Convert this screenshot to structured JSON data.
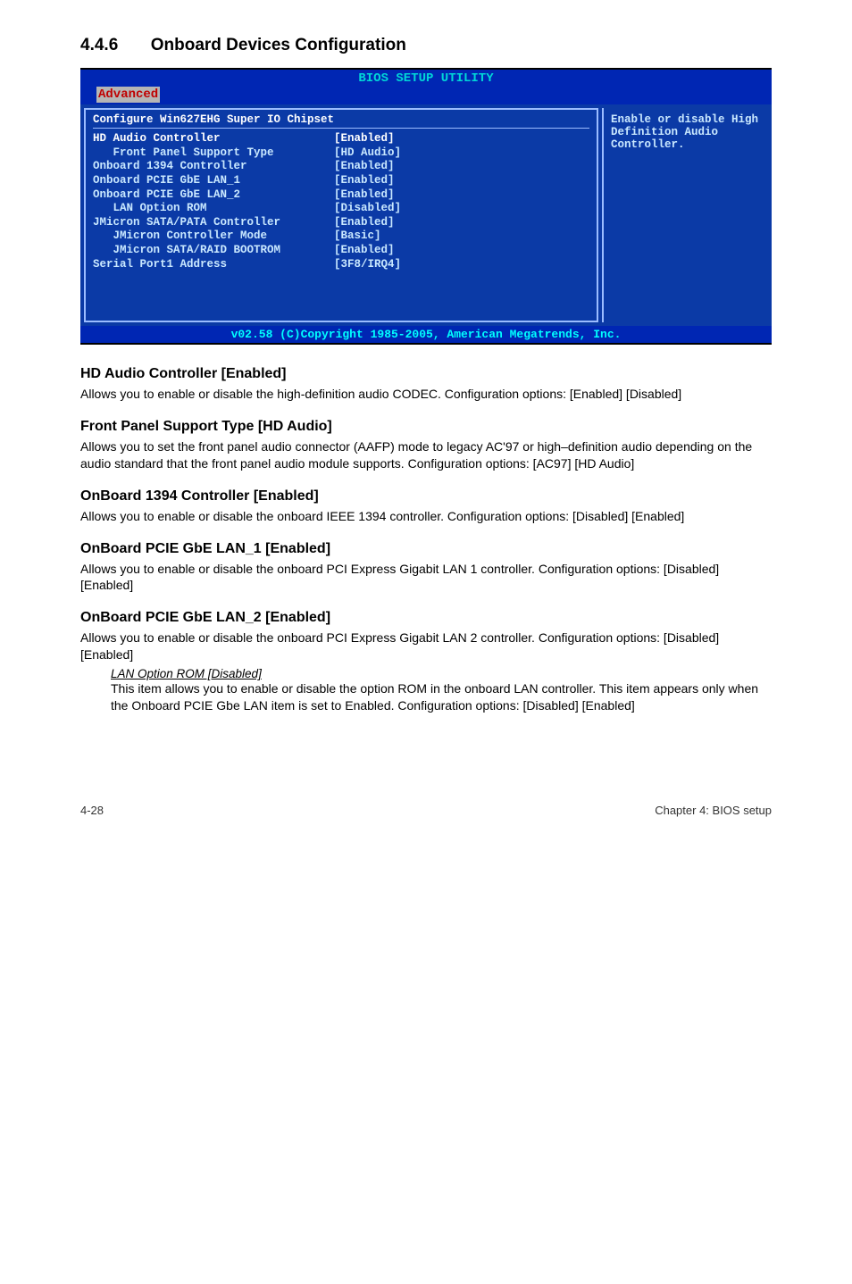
{
  "colors": {
    "bios_blue": "#0026b3",
    "bios_cyan": "#00d7d7",
    "bios_tab_bg": "#b5b5b5",
    "bios_tab_text": "#c00000",
    "bios_body_bg": "#0b3aa6",
    "bios_body_text": "#ffffff",
    "bios_right_text": "#c9e8ff",
    "bios_border": "#9bbcff",
    "bios_footer_text": "#00ffff",
    "bios_highlight": "#ffffff"
  },
  "section": {
    "number": "4.4.6",
    "title": "Onboard Devices Configuration"
  },
  "bios": {
    "title": "BIOS SETUP UTILITY",
    "tab": "Advanced",
    "panel_heading": "Configure Win627EHG Super IO Chipset",
    "rows": [
      {
        "k": "HD Audio Controller",
        "v": "[Enabled]",
        "indent": 0,
        "sel": true
      },
      {
        "k": "Front Panel Support Type",
        "v": "[HD Audio]",
        "indent": 1
      },
      {
        "k": "Onboard 1394 Controller",
        "v": "[Enabled]",
        "indent": 0
      },
      {
        "k": "Onboard PCIE GbE LAN_1",
        "v": "[Enabled]",
        "indent": 0
      },
      {
        "k": "Onboard PCIE GbE LAN_2",
        "v": "[Enabled]",
        "indent": 0
      },
      {
        "k": "LAN Option ROM",
        "v": "[Disabled]",
        "indent": 1
      },
      {
        "k": "JMicron SATA/PATA Controller",
        "v": "[Enabled]",
        "indent": 0
      },
      {
        "k": "JMicron Controller Mode",
        "v": "[Basic]",
        "indent": 1
      },
      {
        "k": "JMicron SATA/RAID BOOTROM",
        "v": "[Enabled]",
        "indent": 1
      },
      {
        "k": "",
        "v": "",
        "indent": 0
      },
      {
        "k": "Serial Port1 Address",
        "v": "[3F8/IRQ4]",
        "indent": 0
      }
    ],
    "help": "Enable or disable High Definition Audio Controller.",
    "footer": "v02.58 (C)Copyright 1985-2005, American Megatrends, Inc."
  },
  "subs": [
    {
      "h": "HD Audio Controller [Enabled]",
      "p": "Allows you to enable or disable the high-definition audio CODEC. Configuration options: [Enabled] [Disabled]"
    },
    {
      "h": "Front Panel Support Type [HD Audio]",
      "p": "Allows you to set the front panel audio connector (AAFP) mode to legacy AC'97 or high–definition audio depending on the audio standard that the front panel audio module supports. Configuration options: [AC97] [HD Audio]"
    },
    {
      "h": "OnBoard 1394 Controller [Enabled]",
      "p": "Allows you to enable or disable the onboard IEEE 1394 controller.  Configuration options: [Disabled] [Enabled]"
    },
    {
      "h": "OnBoard PCIE GbE LAN_1 [Enabled]",
      "p": "Allows you to enable or disable the onboard PCI Express Gigabit LAN 1 controller. Configuration options: [Disabled] [Enabled]"
    },
    {
      "h": "OnBoard PCIE GbE LAN_2 [Enabled]",
      "p": "Allows you to enable or disable the onboard PCI Express Gigabit LAN 2 controller. Configuration options: [Disabled] [Enabled]"
    }
  ],
  "subitem": {
    "title": "LAN Option ROM [Disabled]",
    "body": "This item allows you to enable or disable the option ROM in the onboard LAN controller. This item appears only when the Onboard PCIE Gbe LAN item is set to Enabled. Configuration options: [Disabled] [Enabled]"
  },
  "footer": {
    "left": "4-28",
    "right": "Chapter 4: BIOS setup"
  }
}
